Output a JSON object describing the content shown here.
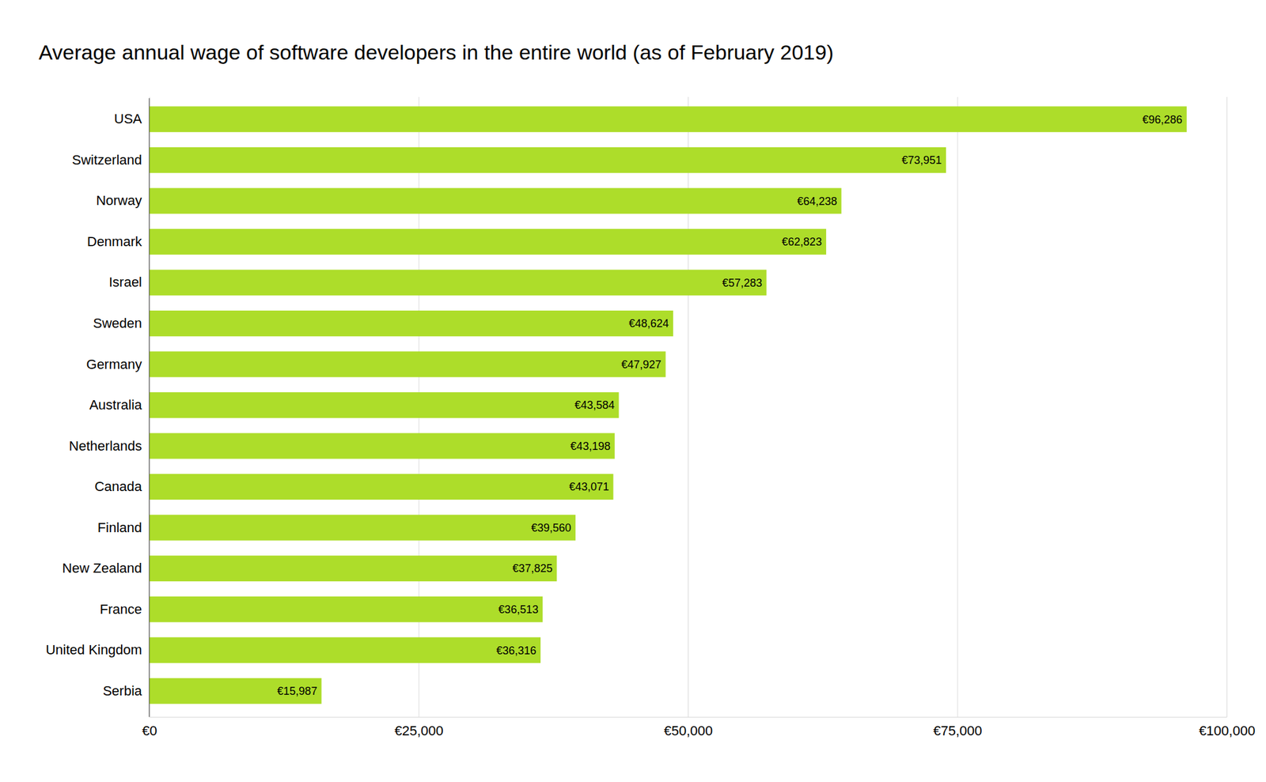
{
  "chart_data": {
    "type": "bar",
    "title": "Average annual wage of software developers in the entire world (as of February 2019)",
    "orientation": "horizontal",
    "categories": [
      "USA",
      "Switzerland",
      "Norway",
      "Denmark",
      "Israel",
      "Sweden",
      "Germany",
      "Australia",
      "Netherlands",
      "Canada",
      "Finland",
      "New Zealand",
      "France",
      "United Kingdom",
      "Serbia"
    ],
    "values": [
      96286,
      73951,
      64238,
      62823,
      57283,
      48624,
      47927,
      43584,
      43198,
      43071,
      39560,
      37825,
      36513,
      36316,
      15987
    ],
    "value_labels": [
      "€96,286",
      "€73,951",
      "€64,238",
      "€62,823",
      "€57,283",
      "€48,624",
      "€47,927",
      "€43,584",
      "€43,198",
      "€43,071",
      "€39,560",
      "€37,825",
      "€36,513",
      "€36,316",
      "€15,987"
    ],
    "color": "#addd2a",
    "xlim": [
      0,
      100000
    ],
    "xticks": [
      {
        "value": 0,
        "label": "€0"
      },
      {
        "value": 25000,
        "label": "€25,000"
      },
      {
        "value": 50000,
        "label": "€50,000"
      },
      {
        "value": 75000,
        "label": "€75,000"
      },
      {
        "value": 100000,
        "label": "€100,000"
      }
    ],
    "grid": true,
    "data_labels": true
  }
}
